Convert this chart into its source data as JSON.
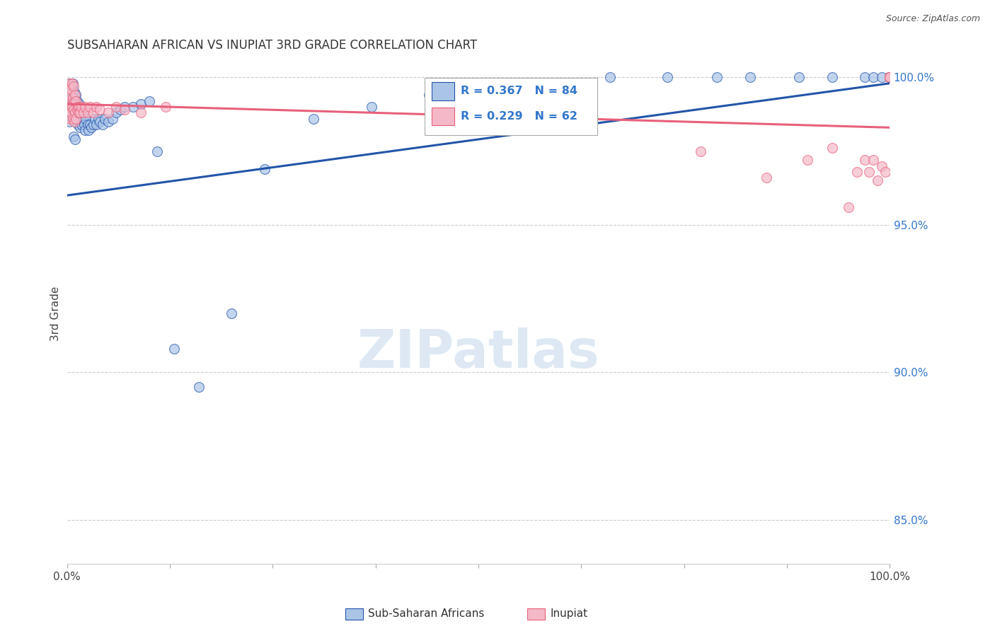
{
  "title": "SUBSAHARAN AFRICAN VS INUPIAT 3RD GRADE CORRELATION CHART",
  "source": "Source: ZipAtlas.com",
  "ylabel": "3rd Grade",
  "right_ytick_labels": [
    "100.0%",
    "95.0%",
    "90.0%",
    "85.0%"
  ],
  "right_ytick_values": [
    1.0,
    0.95,
    0.9,
    0.85
  ],
  "legend_blue_r": "R = 0.367",
  "legend_blue_n": "N = 84",
  "legend_pink_r": "R = 0.229",
  "legend_pink_n": "N = 62",
  "legend_label_blue": "Sub-Saharan Africans",
  "legend_label_pink": "Inupiat",
  "blue_color": "#aac4e8",
  "pink_color": "#f5b8c8",
  "trendline_blue": "#2255aa",
  "trendline_pink": "#e8607a",
  "blue_scatter_x": [
    0.001,
    0.002,
    0.003,
    0.003,
    0.004,
    0.004,
    0.005,
    0.005,
    0.006,
    0.006,
    0.007,
    0.007,
    0.007,
    0.008,
    0.008,
    0.008,
    0.009,
    0.009,
    0.01,
    0.01,
    0.01,
    0.011,
    0.011,
    0.012,
    0.012,
    0.013,
    0.013,
    0.014,
    0.015,
    0.015,
    0.016,
    0.017,
    0.018,
    0.019,
    0.02,
    0.021,
    0.022,
    0.023,
    0.025,
    0.026,
    0.028,
    0.03,
    0.032,
    0.034,
    0.036,
    0.038,
    0.04,
    0.043,
    0.046,
    0.05,
    0.055,
    0.06,
    0.065,
    0.07,
    0.08,
    0.09,
    0.1,
    0.11,
    0.13,
    0.16,
    0.2,
    0.24,
    0.3,
    0.37,
    0.44,
    0.52,
    0.61,
    0.66,
    0.73,
    0.79,
    0.83,
    0.89,
    0.93,
    0.97,
    0.98,
    0.99,
    1.0,
    1.0,
    1.0,
    1.0,
    1.0,
    1.0,
    1.0,
    1.0
  ],
  "blue_scatter_y": [
    0.988,
    0.992,
    0.985,
    0.998,
    0.989,
    0.995,
    0.987,
    0.993,
    0.99,
    0.997,
    0.986,
    0.992,
    0.998,
    0.988,
    0.994,
    0.98,
    0.989,
    0.995,
    0.987,
    0.993,
    0.979,
    0.988,
    0.994,
    0.986,
    0.992,
    0.984,
    0.99,
    0.988,
    0.985,
    0.991,
    0.983,
    0.986,
    0.984,
    0.988,
    0.986,
    0.984,
    0.982,
    0.986,
    0.984,
    0.982,
    0.984,
    0.983,
    0.984,
    0.986,
    0.984,
    0.986,
    0.985,
    0.984,
    0.986,
    0.985,
    0.986,
    0.988,
    0.989,
    0.99,
    0.99,
    0.991,
    0.992,
    0.975,
    0.908,
    0.895,
    0.92,
    0.969,
    0.986,
    0.99,
    0.994,
    0.996,
    0.998,
    1.0,
    1.0,
    1.0,
    1.0,
    1.0,
    1.0,
    1.0,
    1.0,
    1.0,
    1.0,
    1.0,
    1.0,
    1.0,
    1.0,
    1.0,
    1.0,
    1.0
  ],
  "pink_scatter_x": [
    0.001,
    0.002,
    0.002,
    0.003,
    0.003,
    0.004,
    0.004,
    0.005,
    0.005,
    0.006,
    0.006,
    0.007,
    0.007,
    0.008,
    0.008,
    0.009,
    0.009,
    0.01,
    0.01,
    0.011,
    0.011,
    0.012,
    0.013,
    0.014,
    0.015,
    0.016,
    0.018,
    0.02,
    0.022,
    0.025,
    0.028,
    0.032,
    0.036,
    0.04,
    0.05,
    0.06,
    0.07,
    0.09,
    0.12,
    0.77,
    0.85,
    0.9,
    0.93,
    0.95,
    0.96,
    0.97,
    0.975,
    0.98,
    0.985,
    0.99,
    0.995,
    1.0,
    1.0,
    1.0,
    1.0,
    1.0,
    1.0,
    1.0,
    1.0,
    1.0,
    1.0,
    1.0
  ],
  "pink_scatter_y": [
    0.992,
    0.988,
    0.996,
    0.99,
    0.998,
    0.986,
    0.994,
    0.988,
    0.996,
    0.99,
    0.998,
    0.986,
    0.993,
    0.989,
    0.997,
    0.985,
    0.992,
    0.988,
    0.994,
    0.986,
    0.992,
    0.989,
    0.99,
    0.988,
    0.99,
    0.988,
    0.99,
    0.988,
    0.99,
    0.988,
    0.99,
    0.988,
    0.99,
    0.989,
    0.988,
    0.99,
    0.989,
    0.988,
    0.99,
    0.975,
    0.966,
    0.972,
    0.976,
    0.956,
    0.968,
    0.972,
    0.968,
    0.972,
    0.965,
    0.97,
    0.968,
    1.0,
    1.0,
    1.0,
    1.0,
    1.0,
    1.0,
    1.0,
    1.0,
    1.0,
    1.0,
    1.0
  ],
  "xlim": [
    0.0,
    1.0
  ],
  "ylim": [
    0.835,
    1.005
  ],
  "trendline_blue_params": [
    0.038,
    0.96
  ],
  "trendline_pink_params": [
    -0.008,
    0.991
  ],
  "watermark": "ZIPatlas",
  "background_color": "#ffffff",
  "grid_color": "#cccccc"
}
